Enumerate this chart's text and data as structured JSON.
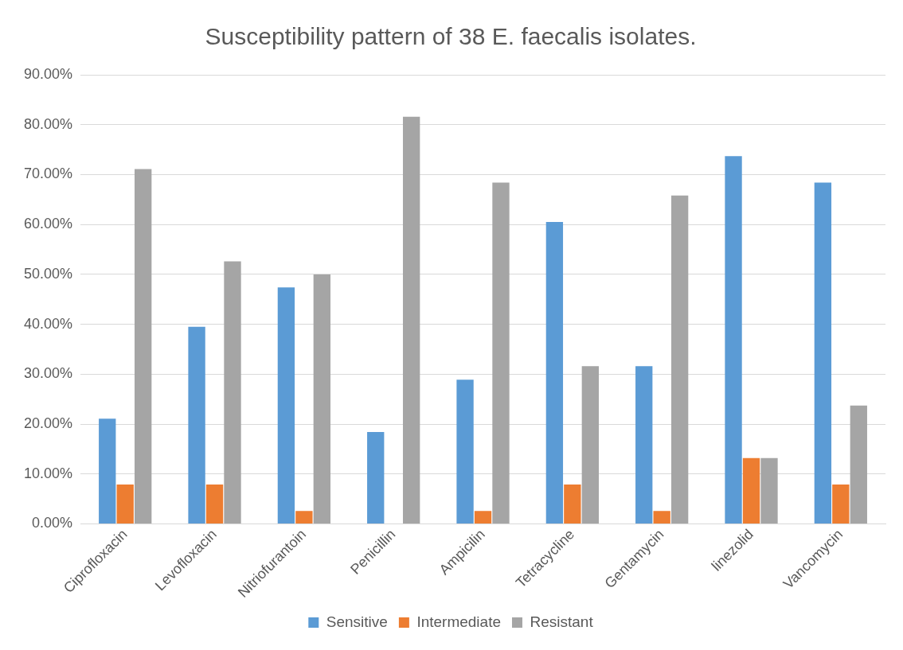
{
  "chart_data": {
    "type": "bar",
    "title": "Susceptibility pattern of 38 E. faecalis isolates.",
    "categories": [
      "Ciprofloxacin",
      "Levofloxacin",
      "Nitriofurantoin",
      "Penicillin",
      "Ampicilin",
      "Tetracycline",
      "Gentamycin",
      "linezolid",
      "Vancomycin"
    ],
    "series": [
      {
        "name": "Sensitive",
        "color": "#5b9bd5",
        "values": [
          21.1,
          39.5,
          47.4,
          18.4,
          28.9,
          60.5,
          31.6,
          73.7,
          68.4
        ]
      },
      {
        "name": "Intermediate",
        "color": "#ed7d31",
        "values": [
          7.9,
          7.9,
          2.6,
          0,
          2.6,
          7.9,
          2.6,
          13.2,
          7.9
        ]
      },
      {
        "name": "Resistant",
        "color": "#a5a5a5",
        "values": [
          71.1,
          52.6,
          50,
          81.6,
          68.4,
          31.6,
          65.8,
          13.2,
          23.7
        ]
      }
    ],
    "ylim": [
      0,
      90
    ],
    "yticks": [
      {
        "value": 0,
        "label": "0.00%"
      },
      {
        "value": 10,
        "label": "10.00%"
      },
      {
        "value": 20,
        "label": "20.00%"
      },
      {
        "value": 30,
        "label": "30.00%"
      },
      {
        "value": 40,
        "label": "40.00%"
      },
      {
        "value": 50,
        "label": "50.00%"
      },
      {
        "value": 60,
        "label": "60.00%"
      },
      {
        "value": 70,
        "label": "70.00%"
      },
      {
        "value": 80,
        "label": "80.00%"
      },
      {
        "value": 90,
        "label": "90.00%"
      }
    ],
    "grid": "y",
    "legend": "bottom"
  }
}
